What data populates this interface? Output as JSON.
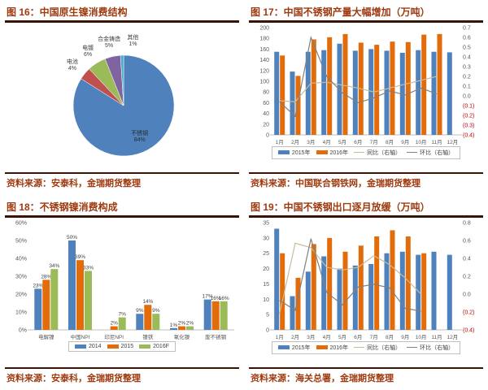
{
  "colors": {
    "title_text": "#9e3a10",
    "rule": "#381402",
    "axis_text": "#595959",
    "negative_axis_text": "#c00000",
    "bar_blue": "#4f81bd",
    "bar_orange": "#e26b0a",
    "bar_green": "#9bbb59",
    "pie_red": "#c0504d",
    "pie_purple": "#8064a2",
    "pie_cyan": "#4bacc6",
    "line_light": "#c8bd96",
    "line_dark": "#808080",
    "legend_border": "#bfbfbf"
  },
  "chart_data": [
    {
      "id": "fig16",
      "type": "pie",
      "title": "图 16：中国原生镍消费结构",
      "source": "资料来源：安泰科，金瑞期货整理",
      "slices": [
        {
          "label": "不锈钢",
          "value": 84,
          "color": "#4f81bd"
        },
        {
          "label": "电池",
          "value": 4,
          "color": "#c0504d"
        },
        {
          "label": "电镀",
          "value": 6,
          "color": "#9bbb59"
        },
        {
          "label": "合金铸造",
          "value": 5,
          "color": "#8064a2"
        },
        {
          "label": "其他",
          "value": 1,
          "color": "#4bacc6"
        }
      ]
    },
    {
      "id": "fig17",
      "type": "bar-line",
      "title": "图 17：中国不锈钢产量大幅增加（万吨）",
      "source": "资料来源：中国联合钢铁网，金瑞期货整理",
      "categories": [
        "1月",
        "2月",
        "3月",
        "4月",
        "5月",
        "6月",
        "7月",
        "8月",
        "9月",
        "10月",
        "11月",
        "12月"
      ],
      "left_axis": {
        "min": 0,
        "max": 200,
        "step": 20,
        "format": "int"
      },
      "right_axis": {
        "min": -0.4,
        "max": 0.7,
        "step": 0.1,
        "format": "paren1"
      },
      "series": [
        {
          "name": "2015年",
          "type": "bar",
          "axis": "left",
          "color": "#4f81bd",
          "values": [
            155,
            118,
            155,
            158,
            170,
            157,
            160,
            157,
            153,
            158,
            155,
            154
          ]
        },
        {
          "name": "2016年",
          "type": "bar",
          "axis": "left",
          "color": "#e26b0a",
          "values": [
            148,
            110,
            178,
            182,
            188,
            172,
            168,
            174,
            173,
            187,
            188,
            null
          ]
        },
        {
          "name": "同比（右轴）",
          "type": "line",
          "axis": "right",
          "color": "#c8bd96",
          "values": [
            -0.05,
            -0.06,
            0.13,
            0.14,
            0.11,
            0.08,
            0.04,
            0.08,
            0.12,
            0.16,
            0.2,
            null
          ]
        },
        {
          "name": "环比（右轴）",
          "type": "line",
          "axis": "right",
          "color": "#808080",
          "values": [
            -0.06,
            -0.21,
            0.6,
            0.2,
            0.03,
            -0.07,
            -0.02,
            0.05,
            0.01,
            0.08,
            0.02,
            null
          ]
        }
      ]
    },
    {
      "id": "fig18",
      "type": "bar",
      "title": "图 18：不锈钢镍消费构成",
      "source": "资料来源：安泰科，金瑞期货整理",
      "categories": [
        "电解镍",
        "中国NPI",
        "印尼NPI",
        "镍铁",
        "氧化镍",
        "废不锈钢"
      ],
      "left_axis": {
        "min": 0,
        "max": 60,
        "step": 10,
        "format": "pct"
      },
      "show_labels": true,
      "series": [
        {
          "name": "2014",
          "type": "bar",
          "axis": "left",
          "color": "#4f81bd",
          "values": [
            23,
            50,
            null,
            9,
            1,
            17
          ]
        },
        {
          "name": "2015",
          "type": "bar",
          "axis": "left",
          "color": "#e26b0a",
          "values": [
            28,
            39,
            2,
            14,
            2,
            16
          ]
        },
        {
          "name": "2016F",
          "type": "bar",
          "axis": "left",
          "color": "#9bbb59",
          "values": [
            34,
            33,
            7,
            9,
            2,
            16
          ]
        }
      ]
    },
    {
      "id": "fig19",
      "type": "bar-line",
      "title": "图 19：中国不锈钢出口逐月放缓（万吨）",
      "source": "资料来源：海关总署，金瑞期货整理",
      "categories": [
        "1月",
        "2月",
        "3月",
        "4月",
        "5月",
        "6月",
        "7月",
        "8月",
        "9月",
        "10月",
        "11月",
        "12月"
      ],
      "left_axis": {
        "min": 0,
        "max": 35,
        "step": 5,
        "format": "int"
      },
      "right_axis": {
        "min": -0.4,
        "max": 0.8,
        "step": 0.2,
        "format": "paren1"
      },
      "series": [
        {
          "name": "2015年",
          "type": "bar",
          "axis": "left",
          "color": "#4f81bd",
          "values": [
            33,
            11,
            19,
            24,
            20,
            21,
            21.5,
            25,
            25.5,
            24.5,
            25.5,
            24.5
          ]
        },
        {
          "name": "2016年",
          "type": "bar",
          "axis": "left",
          "color": "#e26b0a",
          "values": [
            25,
            17,
            28,
            30,
            25.5,
            27.5,
            30.5,
            32.5,
            30.5,
            25,
            null,
            null
          ]
        },
        {
          "name": "同比（右轴）",
          "type": "line",
          "axis": "right",
          "color": "#c8bd96",
          "values": [
            -0.22,
            0.57,
            0.52,
            0.3,
            0.27,
            0.3,
            0.43,
            0.33,
            0.18,
            0.0,
            null,
            null
          ]
        },
        {
          "name": "环比（右轴）",
          "type": "line",
          "axis": "right",
          "color": "#808080",
          "values": [
            -0.07,
            -0.18,
            0.62,
            0.02,
            -0.12,
            0.08,
            0.11,
            0.07,
            -0.16,
            -0.19,
            null,
            null
          ]
        }
      ]
    }
  ]
}
